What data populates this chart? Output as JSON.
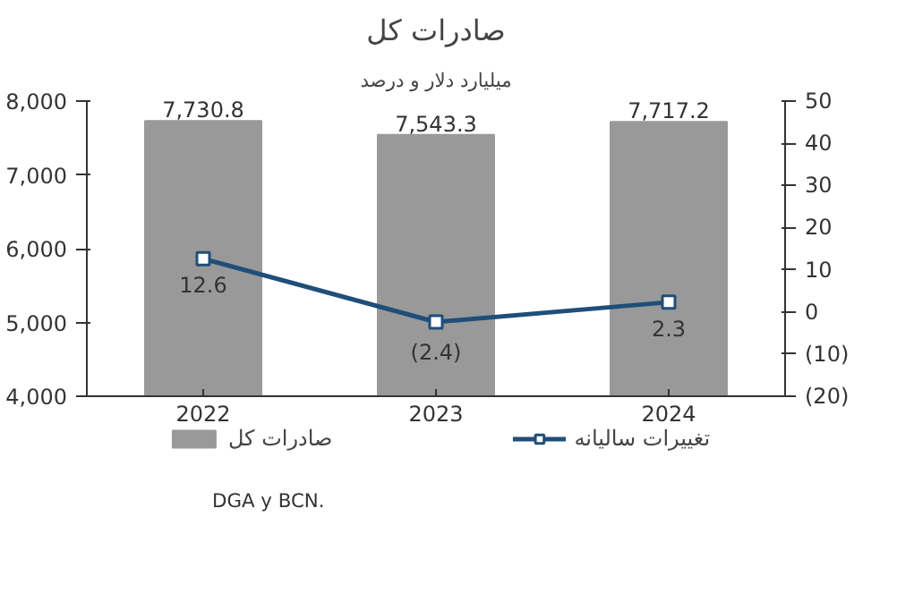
{
  "chart_data": {
    "type": "bar",
    "title": "صادرات کل",
    "subtitle": "میلیارد دلار و درصد",
    "categories": [
      "2022",
      "2023",
      "2024"
    ],
    "series": [
      {
        "name": "صادرات کل",
        "color": "#999999",
        "values": [
          7730.8,
          7543.3,
          7717.2
        ],
        "value_labels": [
          "7,730.8",
          "7,543.3",
          "7,717.2"
        ]
      },
      {
        "name": "تغییرات سالیانه",
        "type": "line",
        "axis": "y2",
        "color": "#1f4e79",
        "values": [
          12.6,
          -2.4,
          2.3
        ],
        "value_labels": [
          "12.6",
          "(2.4)",
          "2.3"
        ],
        "marker": "square",
        "line_style": "solid"
      }
    ],
    "ylim": [
      4000,
      8000
    ],
    "yticks": [
      {
        "value": 4000,
        "label": "4,000"
      },
      {
        "value": 5000,
        "label": "5,000"
      },
      {
        "value": 6000,
        "label": "6,000"
      },
      {
        "value": 7000,
        "label": "7,000"
      },
      {
        "value": 8000,
        "label": "8,000"
      }
    ],
    "y2lim": [
      -20,
      50
    ],
    "y2ticks": [
      {
        "value": -20,
        "label": "(20)"
      },
      {
        "value": -10,
        "label": "(10)"
      },
      0,
      10,
      20,
      30,
      40,
      50
    ],
    "legend": "bottom",
    "grid": false,
    "annotations": [
      "DGA y BCN."
    ]
  }
}
